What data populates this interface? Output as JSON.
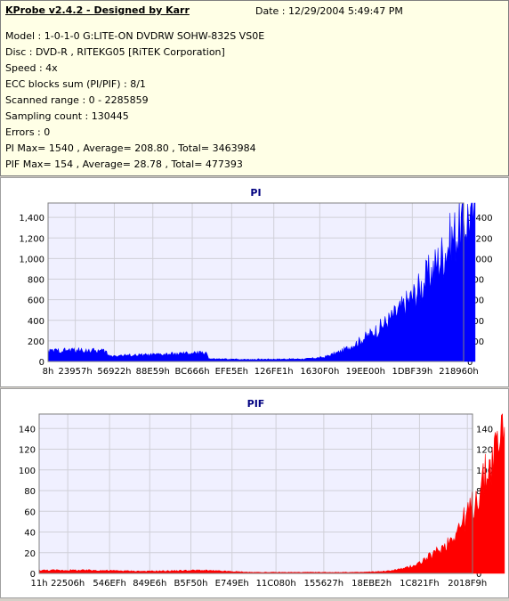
{
  "header": {
    "title": "KProbe v2.4.2 - Designed by Karr",
    "date": "Date : 12/29/2004 5:49:47 PM",
    "lines": [
      "Model : 1-0-1-0 G:LITE-ON DVDRW SOHW-832S  VS0E",
      "Disc : DVD-R , RITEKG05 [RiTEK Corporation]",
      "Speed : 4x",
      "ECC blocks sum (PI/PIF) : 8/1",
      "Scanned range : 0 - 2285859",
      "Sampling count : 130445",
      "Errors : 0",
      "PI Max= 1540 , Average= 208.80 , Total= 3463984",
      "PIF Max= 154 , Average= 28.78 , Total= 477393"
    ]
  },
  "chart_data": [
    {
      "type": "area",
      "title": "PI",
      "color": "#0000ff",
      "ylim": [
        0,
        1540
      ],
      "yticks": [
        0,
        200,
        400,
        600,
        800,
        1000,
        1200,
        1400
      ],
      "ytick_labels": [
        "0",
        "200",
        "400",
        "600",
        "800",
        "1,000",
        "1,200",
        "1,400"
      ],
      "xtick_labels": [
        "8h",
        "23957h",
        "56922h",
        "88E59h",
        "BC666h",
        "EFE5Eh",
        "126FE1h",
        "1630F0h",
        "19EE00h",
        "1DBF39h",
        "218960h"
      ],
      "x_hex": [
        "0x8",
        "0x23957",
        "0x56922",
        "0x88E59",
        "0xBC666",
        "0xEFE5E",
        "0x126FE1",
        "0x1630F0",
        "0x19EE00",
        "0x1DBF39",
        "0x218960"
      ],
      "series": [
        {
          "x_hex": [
            "0x0",
            "0x20000",
            "0x4C000",
            "0x4E000",
            "0x8C000",
            "0xD0000",
            "0xD2000",
            "0x100000",
            "0x150000",
            "0x168000",
            "0x180000",
            "0x198000",
            "0x1B0000",
            "0x1C8000",
            "0x1E0000",
            "0x1F8000",
            "0x210000",
            "0x22E000"
          ],
          "values": [
            100,
            110,
            100,
            55,
            65,
            85,
            25,
            20,
            25,
            40,
            100,
            200,
            320,
            470,
            660,
            900,
            1200,
            1500
          ]
        }
      ]
    },
    {
      "type": "area",
      "title": "PIF",
      "color": "#ff0000",
      "ylim": [
        0,
        154
      ],
      "yticks": [
        0,
        20,
        40,
        60,
        80,
        100,
        120,
        140
      ],
      "ytick_labels": [
        "0",
        "20",
        "40",
        "60",
        "80",
        "100",
        "120",
        "140"
      ],
      "xtick_labels": [
        "11h",
        "22506h",
        "546EFh",
        "849E6h",
        "B5F50h",
        "E749Eh",
        "11C080h",
        "155627h",
        "18EBE2h",
        "1C821Fh",
        "2018F9h"
      ],
      "x_hex": [
        "0x11",
        "0x22506",
        "0x546EF",
        "0x849E6",
        "0xB5F50",
        "0xE749E",
        "0x11C080",
        "0x155627",
        "0x18EBE2",
        "0x1C821F",
        "0x2018F9"
      ],
      "series": [
        {
          "x_hex": [
            "0x0",
            "0x40000",
            "0x80000",
            "0xC0000",
            "0x100000",
            "0x150000",
            "0x180000",
            "0x1A0000",
            "0x1B8000",
            "0x1C8000",
            "0x1D8000",
            "0x1E8000",
            "0x1F8000",
            "0x208000",
            "0x218000",
            "0x228000",
            "0x22E000"
          ],
          "values": [
            3,
            3,
            2,
            3,
            1,
            1,
            1,
            2,
            5,
            10,
            18,
            28,
            45,
            65,
            95,
            130,
            150
          ]
        }
      ]
    }
  ]
}
